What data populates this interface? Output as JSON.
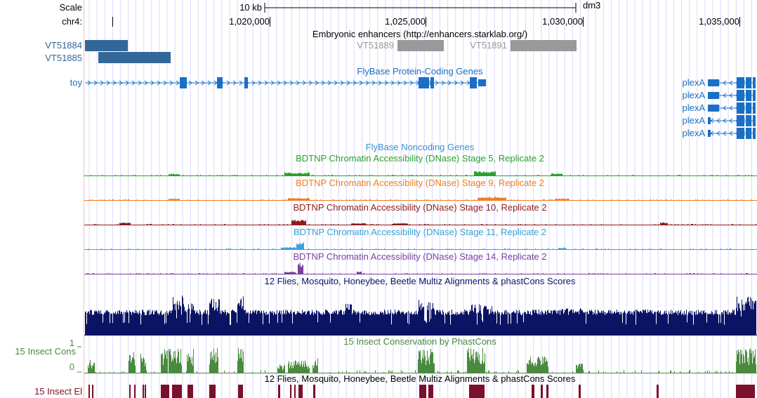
{
  "ruler": {
    "scale_label": "Scale",
    "scale_bar": "10 kb",
    "assembly": "dm3",
    "chrom_label": "chr4:",
    "ticks": [
      "1,020,000",
      "1,025,000",
      "1,030,000",
      "1,035,000"
    ]
  },
  "enhancers": {
    "title": "Embryonic enhancers (http://enhancers.starklab.org/)",
    "items": [
      {
        "name": "VT51884"
      },
      {
        "name": "VT51885"
      },
      {
        "name": "VT51889"
      },
      {
        "name": "VT51891"
      }
    ]
  },
  "protein_genes": {
    "title": "FlyBase Protein-Coding Genes",
    "genes": [
      "toy",
      "plexA",
      "plexA",
      "plexA",
      "plexA",
      "plexA"
    ]
  },
  "noncoding_genes": {
    "title": "FlyBase Noncoding Genes"
  },
  "dnase": [
    {
      "title": "BDTNP Chromatin Accessibility (DNase) Stage 5, Replicate 2",
      "color": "#2ca02c"
    },
    {
      "title": "BDTNP Chromatin Accessibility (DNase) Stage 9, Replicate 2",
      "color": "#ef7d22"
    },
    {
      "title": "BDTNP Chromatin Accessibility (DNase) Stage 10, Replicate 2",
      "color": "#8e1c1c"
    },
    {
      "title": "BDTNP Chromatin Accessibility (DNase) Stage 11, Replicate 2",
      "color": "#3c9fd6"
    },
    {
      "title": "BDTNP Chromatin Accessibility (DNase) Stage 14, Replicate 2",
      "color": "#7a3fa0"
    }
  ],
  "multiz": {
    "title": "12 Flies, Mosquito, Honeybee, Beetle Multiz Alignments & phastCons Scores",
    "color": "#0b1464"
  },
  "cons": {
    "title": "15 Insect Conservation by PhastCons",
    "label": "15 Insect Cons",
    "ymax": "1",
    "ymin": "0",
    "color": "#4a8a3e"
  },
  "elements": {
    "title": "12 Flies, Mosquito, Honeybee, Beetle Multiz Alignments & phastCons Scores",
    "label": "15 Insect El",
    "color": "#7a0f2e"
  }
}
